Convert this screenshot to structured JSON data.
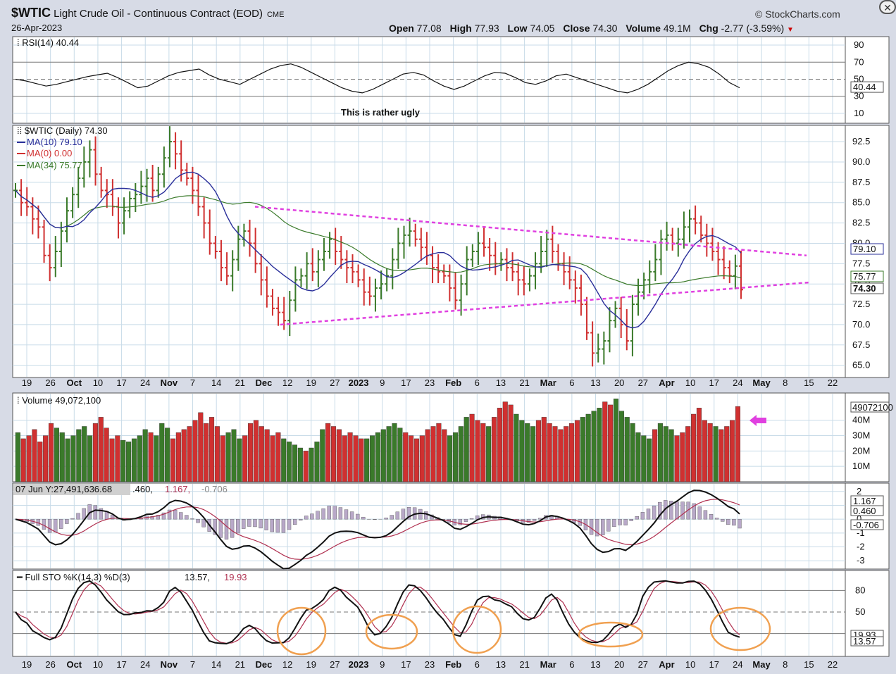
{
  "header": {
    "symbol": "$WTIC",
    "name": "Light Crude Oil - Continuous Contract (EOD)",
    "exchange": "CME",
    "date": "26-Apr-2023",
    "source": "© StockCharts.com",
    "open_label": "Open",
    "open": "77.08",
    "high_label": "High",
    "high": "77.93",
    "low_label": "Low",
    "low": "74.05",
    "close_label": "Close",
    "close": "74.30",
    "volume_label": "Volume",
    "volume": "49.1M",
    "chg_label": "Chg",
    "chg": "-2.77 (-3.59%)"
  },
  "annotation": {
    "text": "This is rather ugly",
    "color": "#a64df0"
  },
  "colors": {
    "up": "#3a7a2a",
    "down": "#d03030",
    "ma10": "#2a2f9a",
    "ma34": "#3a7a2a",
    "trend": "#e040e0",
    "circle": "#f0a050",
    "panel": "#ffffff",
    "grid": "#c8dbe8"
  },
  "x_labels": [
    "19",
    "26",
    "Oct",
    "10",
    "17",
    "24",
    "Nov",
    "7",
    "14",
    "21",
    "Dec",
    "12",
    "19",
    "27",
    "2023",
    "9",
    "17",
    "23",
    "Feb",
    "6",
    "13",
    "21",
    "Mar",
    "6",
    "13",
    "20",
    "27",
    "Apr",
    "10",
    "17",
    "24",
    "May",
    "8",
    "15",
    "22"
  ],
  "x_bold": [
    "Oct",
    "Nov",
    "Dec",
    "2023",
    "Feb",
    "Mar",
    "Apr",
    "May"
  ],
  "rsi": {
    "legend": "RSI(14) 40.44",
    "ticks": [
      "90",
      "70",
      "50",
      "30",
      "10"
    ],
    "last": "40.44",
    "values": [
      50,
      48,
      45,
      42,
      44,
      47,
      50,
      53,
      55,
      57,
      52,
      46,
      40,
      42,
      48,
      54,
      58,
      60,
      62,
      55,
      50,
      47,
      44,
      50,
      56,
      62,
      66,
      68,
      64,
      58,
      52,
      46,
      40,
      36,
      34,
      38,
      44,
      50,
      56,
      58,
      55,
      48,
      42,
      38,
      42,
      48,
      54,
      58,
      57,
      52,
      46,
      44,
      48,
      54,
      56,
      52,
      48,
      44,
      40,
      36,
      34,
      38,
      44,
      52,
      60,
      66,
      70,
      68,
      64,
      56,
      46,
      40
    ]
  },
  "price": {
    "legend_symbol": "$WTIC (Daily) 74.30",
    "legend_ma10": "MA(10) 79.10",
    "legend_ma0": "MA(0) 0.00",
    "legend_ma34": "MA(34) 75.77",
    "y_ticks": [
      "92.5",
      "90.0",
      "87.5",
      "85.0",
      "82.5",
      "80.0",
      "77.5",
      "75.0",
      "72.5",
      "70.0",
      "67.5",
      "65.0"
    ],
    "ylim": [
      63.5,
      94.5
    ],
    "tag_ma10": "79.10",
    "tag_ma34": "75.77",
    "tag_close": "74.30",
    "closes": [
      86.5,
      85.0,
      84.5,
      83.0,
      82.0,
      78.5,
      77.0,
      79.0,
      81.5,
      84.0,
      86.0,
      88.0,
      90.0,
      91.5,
      88.5,
      86.5,
      86.0,
      84.5,
      82.5,
      84.0,
      85.5,
      86.0,
      87.0,
      88.0,
      86.5,
      88.5,
      90.5,
      92.5,
      91.0,
      89.0,
      88.0,
      86.5,
      84.5,
      82.5,
      80.0,
      79.0,
      77.0,
      76.0,
      78.0,
      80.5,
      81.5,
      80.0,
      77.5,
      75.5,
      73.5,
      72.0,
      71.5,
      70.5,
      73.0,
      75.5,
      76.0,
      77.5,
      76.5,
      78.0,
      79.0,
      80.5,
      79.0,
      78.0,
      77.0,
      76.5,
      75.5,
      74.0,
      73.5,
      74.5,
      75.0,
      76.0,
      78.0,
      80.0,
      81.0,
      81.5,
      80.5,
      79.5,
      78.5,
      77.0,
      76.5,
      76.0,
      74.5,
      73.0,
      75.0,
      78.0,
      79.0,
      80.0,
      79.5,
      78.5,
      77.5,
      78.0,
      77.0,
      76.5,
      75.5,
      75.0,
      76.0,
      77.5,
      79.0,
      80.5,
      79.0,
      77.5,
      76.5,
      75.5,
      74.5,
      72.5,
      69.0,
      66.5,
      67.0,
      68.0,
      70.5,
      72.0,
      70.0,
      68.0,
      72.5,
      74.0,
      75.5,
      76.5,
      78.0,
      80.5,
      81.0,
      80.0,
      80.5,
      82.0,
      83.0,
      82.5,
      81.0,
      80.0,
      79.0,
      78.0,
      77.0,
      76.0,
      77.2,
      74.3
    ]
  },
  "volume": {
    "legend": "Volume 49,072,100",
    "ticks": [
      "40M",
      "30M",
      "20M",
      "10M"
    ],
    "last_tag": "49072100",
    "ymax": 55,
    "values": [
      32,
      28,
      30,
      34,
      26,
      30,
      38,
      35,
      32,
      28,
      30,
      34,
      36,
      30,
      38,
      42,
      35,
      28,
      30,
      27,
      26,
      28,
      30,
      34,
      32,
      30,
      38,
      35,
      28,
      32,
      34,
      36,
      40,
      45,
      38,
      42,
      36,
      30,
      32,
      34,
      28,
      30,
      38,
      40,
      36,
      34,
      30,
      32,
      28,
      26,
      24,
      22,
      20,
      22,
      26,
      34,
      38,
      36,
      34,
      30,
      32,
      30,
      28,
      28,
      30,
      32,
      34,
      36,
      38,
      35,
      32,
      30,
      28,
      30,
      34,
      36,
      38,
      34,
      30,
      32,
      36,
      42,
      44,
      40,
      38,
      36,
      42,
      48,
      52,
      50,
      44,
      40,
      38,
      36,
      40,
      42,
      38,
      36,
      34,
      36,
      38,
      40,
      42,
      44,
      46,
      48,
      52,
      50,
      54,
      46,
      42,
      38,
      32,
      30,
      28,
      34,
      38,
      36,
      34,
      30,
      32,
      36,
      44,
      48,
      40,
      38,
      36,
      34,
      36,
      40,
      49
    ]
  },
  "macd": {
    "legend_prefix": "07 Jun Y:27,491,636.68",
    "legend_rest": ".460,",
    "legend_signal": "1.167,",
    "legend_hist": "-0.706",
    "ticks": [
      "2",
      "1",
      "0",
      "-1",
      "-2",
      "-3"
    ],
    "tag_signal": "1.167",
    "tag_macd": "0.460",
    "tag_hist": "-0.706",
    "ylim": [
      -3.6,
      2.6
    ]
  },
  "sto": {
    "legend_prefix": "Full STO %K(14,3) %D(3)",
    "legend_k": "13.57,",
    "legend_d": "19.93",
    "ticks": [
      "80",
      "50",
      "20"
    ],
    "tag_d": "19.93",
    "tag_k": "13.57"
  },
  "chart_data": {
    "type": "line",
    "title": "$WTIC Light Crude Oil - Continuous Contract (EOD)",
    "ylabel": "",
    "xlabel": "",
    "ylim": [
      63.5,
      94.5
    ],
    "series": [
      {
        "name": "$WTIC (Daily)",
        "last": 74.3
      },
      {
        "name": "MA(10)",
        "last": 79.1
      },
      {
        "name": "MA(34)",
        "last": 75.77
      }
    ],
    "grid": true
  }
}
